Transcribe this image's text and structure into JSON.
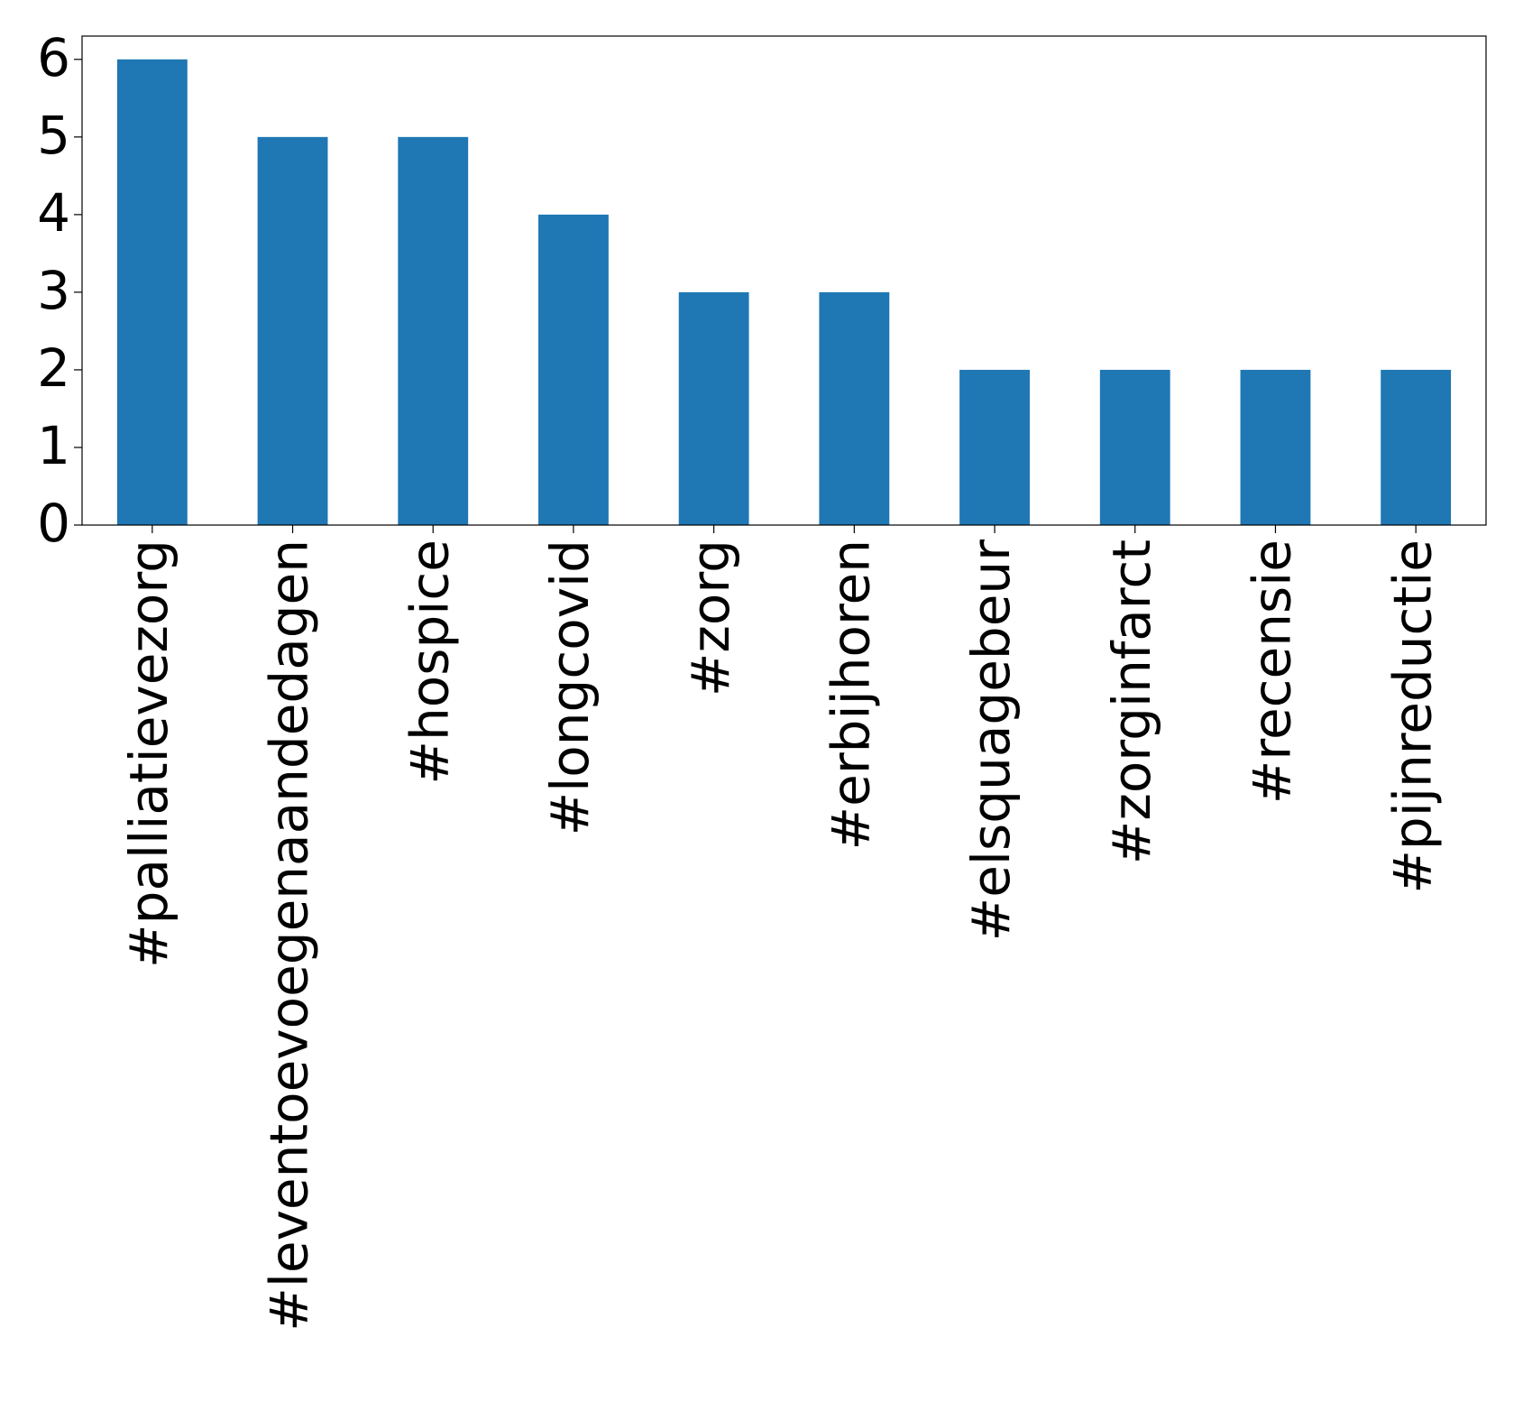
{
  "chart_data": {
    "type": "bar",
    "categories": [
      "#palliatievezorg",
      "#leventoevoegenaandedagen",
      "#hospice",
      "#longcovid",
      "#zorg",
      "#erbijhoren",
      "#elsquagebeur",
      "#zorginfarct",
      "#recensie",
      "#pijnreductie"
    ],
    "values": [
      6,
      5,
      5,
      4,
      3,
      3,
      2,
      2,
      2,
      2
    ],
    "color": "#1f77b4",
    "ylim": [
      0,
      6.3
    ],
    "yticks": [
      0,
      1,
      2,
      3,
      4,
      5,
      6
    ],
    "grid": false
  }
}
